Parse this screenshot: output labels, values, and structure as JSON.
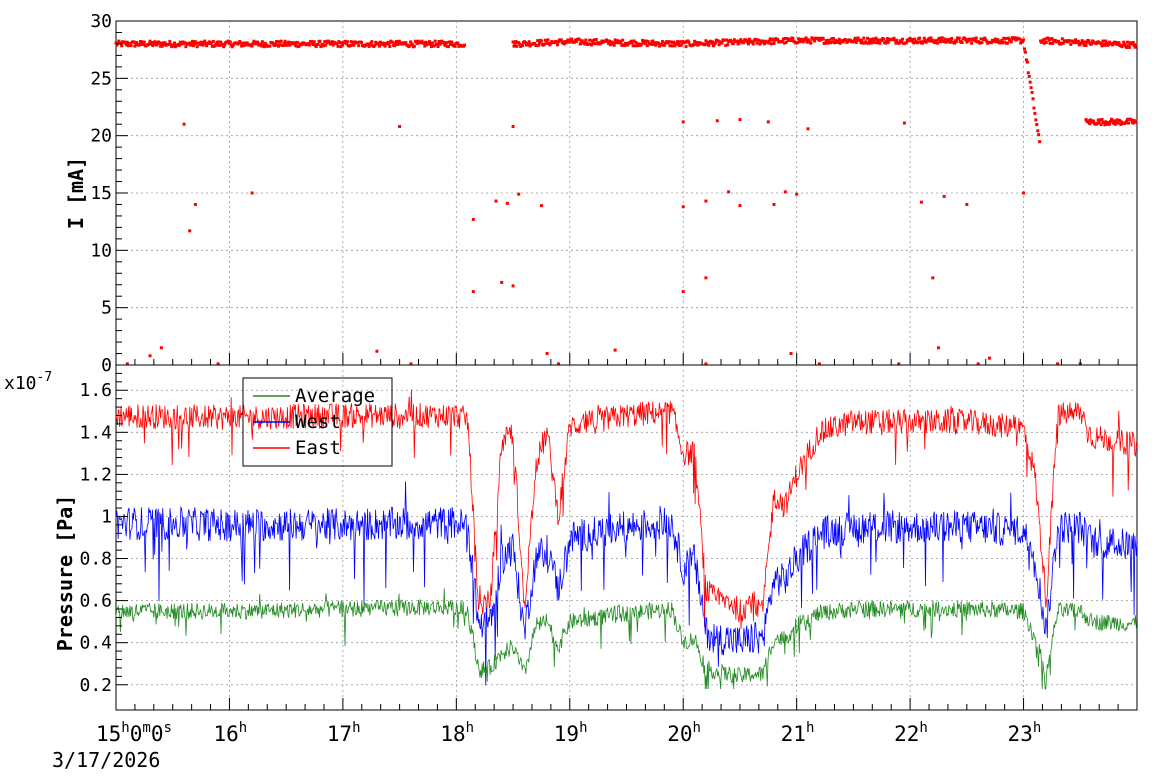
{
  "colors": {
    "current": "#ff0000",
    "average": "#228b22",
    "west": "#0000ff",
    "east": "#ff0000",
    "grid": "#999999",
    "frame": "#000000"
  },
  "chart_data": [
    {
      "type": "scatter",
      "title": "",
      "ylabel": "I [mA]",
      "xlim": [
        15,
        24
      ],
      "ylim": [
        0,
        30
      ],
      "yticks": [
        0,
        5,
        10,
        15,
        20,
        25,
        30
      ],
      "yticklabels": [
        "0",
        "5",
        "10",
        "15",
        "20",
        "25",
        "30"
      ],
      "grid": true,
      "series": [
        {
          "name": "",
          "segments": [
            {
              "x": [
                15.0,
                18.08
              ],
              "y": [
                28.0,
                28.0
              ]
            },
            {
              "x": [
                18.5,
                19.0,
                20.0,
                21.0,
                22.0,
                23.0
              ],
              "y": [
                28.0,
                28.2,
                28.0,
                28.3,
                28.3,
                28.3
              ]
            },
            {
              "x": [
                23.0,
                23.15
              ],
              "y": [
                28.3,
                18.8
              ]
            },
            {
              "x": [
                23.15,
                24.0
              ],
              "y": [
                28.3,
                27.9
              ]
            },
            {
              "x": [
                23.55,
                24.0
              ],
              "y": [
                21.2,
                21.2
              ]
            }
          ],
          "outliers": [
            [
              15.6,
              21.0
            ],
            [
              17.5,
              20.8
            ],
            [
              18.5,
              20.8
            ],
            [
              20.0,
              21.2
            ],
            [
              20.3,
              21.3
            ],
            [
              20.5,
              21.4
            ],
            [
              20.75,
              21.2
            ],
            [
              21.1,
              20.6
            ],
            [
              21.95,
              21.1
            ],
            [
              16.2,
              15.0
            ],
            [
              18.35,
              14.3
            ],
            [
              18.45,
              14.1
            ],
            [
              18.55,
              14.9
            ],
            [
              18.75,
              13.9
            ],
            [
              20.0,
              13.8
            ],
            [
              20.2,
              14.3
            ],
            [
              20.4,
              15.1
            ],
            [
              20.5,
              13.9
            ],
            [
              20.8,
              14.0
            ],
            [
              20.9,
              15.1
            ],
            [
              21.0,
              14.9
            ],
            [
              22.1,
              14.2
            ],
            [
              22.3,
              14.7
            ],
            [
              22.5,
              14.0
            ],
            [
              23.0,
              15.0
            ],
            [
              15.7,
              14.0
            ],
            [
              15.65,
              11.7
            ],
            [
              18.15,
              12.7
            ],
            [
              18.15,
              6.4
            ],
            [
              18.4,
              7.2
            ],
            [
              18.5,
              6.9
            ],
            [
              20.2,
              7.6
            ],
            [
              22.2,
              7.6
            ],
            [
              20.0,
              6.4
            ],
            [
              15.4,
              1.5
            ],
            [
              15.3,
              0.8
            ],
            [
              17.3,
              1.2
            ],
            [
              18.8,
              1.0
            ],
            [
              19.4,
              1.3
            ],
            [
              20.95,
              1.0
            ],
            [
              22.25,
              1.5
            ],
            [
              22.7,
              0.6
            ],
            [
              15.1,
              0.1
            ],
            [
              15.9,
              0.1
            ],
            [
              17.6,
              0.1
            ],
            [
              18.9,
              0.1
            ],
            [
              20.2,
              0.1
            ],
            [
              21.2,
              0.1
            ],
            [
              21.9,
              0.1
            ],
            [
              22.6,
              0.1
            ],
            [
              23.3,
              0.1
            ],
            [
              23.5,
              0.1
            ]
          ]
        }
      ]
    },
    {
      "type": "line",
      "title": "",
      "ylabel": "Pressure [Pa]",
      "yexponent": "x10",
      "yexponent_power": "-7",
      "xlim": [
        15,
        24
      ],
      "ylim": [
        0.08,
        1.72
      ],
      "yticks": [
        0.2,
        0.4,
        0.6,
        0.8,
        1.0,
        1.2,
        1.4,
        1.6
      ],
      "yticklabels": [
        "0.2",
        "0.4",
        "0.6",
        "0.8",
        "1",
        "1.2",
        "1.4",
        "1.6"
      ],
      "xticks": [
        15,
        16,
        17,
        18,
        19,
        20,
        21,
        22,
        23
      ],
      "xticklabels": [
        "15",
        "16",
        "17",
        "18",
        "19",
        "20",
        "21",
        "22",
        "23"
      ],
      "first_tick_suffix": "0m0s",
      "hour_suffix": "h",
      "date_label": "3/17/2026",
      "grid": true,
      "legend": {
        "position": "top-left",
        "entries": [
          "Average",
          "West",
          "East"
        ]
      },
      "series": [
        {
          "name": "East",
          "x": [
            15.0,
            16.0,
            17.0,
            18.0,
            18.1,
            18.2,
            18.3,
            18.4,
            18.5,
            18.6,
            18.7,
            18.8,
            18.9,
            19.0,
            19.5,
            19.9,
            20.0,
            20.1,
            20.2,
            20.3,
            20.4,
            20.5,
            20.6,
            20.7,
            20.8,
            20.9,
            21.0,
            21.2,
            21.5,
            22.0,
            22.5,
            23.0,
            23.1,
            23.2,
            23.3,
            23.5,
            23.6,
            24.0
          ],
          "y": [
            1.48,
            1.47,
            1.48,
            1.48,
            1.46,
            0.55,
            0.6,
            1.35,
            1.4,
            0.55,
            1.25,
            1.4,
            1.0,
            1.43,
            1.48,
            1.5,
            1.3,
            1.3,
            0.65,
            0.6,
            0.6,
            0.55,
            0.6,
            0.55,
            1.1,
            1.05,
            1.2,
            1.4,
            1.45,
            1.45,
            1.45,
            1.42,
            1.2,
            0.6,
            1.48,
            1.5,
            1.38,
            1.34
          ],
          "noise": 0.06
        },
        {
          "name": "West",
          "x": [
            15.0,
            16.0,
            17.0,
            18.0,
            18.1,
            18.2,
            18.3,
            18.4,
            18.5,
            18.6,
            18.7,
            18.8,
            18.9,
            19.0,
            19.5,
            19.9,
            20.0,
            20.1,
            20.2,
            20.3,
            20.4,
            20.5,
            20.6,
            20.7,
            20.8,
            20.9,
            21.0,
            21.2,
            21.5,
            22.0,
            22.5,
            23.0,
            23.1,
            23.2,
            23.3,
            23.5,
            23.6,
            24.0
          ],
          "y": [
            0.97,
            0.96,
            0.96,
            0.97,
            0.95,
            0.48,
            0.5,
            0.8,
            0.85,
            0.45,
            0.8,
            0.85,
            0.65,
            0.9,
            0.95,
            0.97,
            0.75,
            0.8,
            0.45,
            0.42,
            0.42,
            0.4,
            0.42,
            0.42,
            0.7,
            0.7,
            0.8,
            0.92,
            0.95,
            0.95,
            0.95,
            0.93,
            0.8,
            0.45,
            0.95,
            0.95,
            0.88,
            0.86
          ],
          "noise": 0.08
        },
        {
          "name": "Average",
          "x": [
            15.0,
            16.0,
            17.0,
            18.0,
            18.1,
            18.2,
            18.3,
            18.4,
            18.5,
            18.6,
            18.7,
            18.8,
            18.9,
            19.0,
            19.5,
            19.9,
            20.0,
            20.1,
            20.2,
            20.3,
            20.4,
            20.5,
            20.6,
            20.7,
            20.8,
            20.9,
            21.0,
            21.2,
            21.5,
            22.0,
            22.5,
            23.0,
            23.1,
            23.2,
            23.3,
            23.5,
            23.6,
            24.0
          ],
          "y": [
            0.55,
            0.55,
            0.56,
            0.57,
            0.55,
            0.27,
            0.28,
            0.35,
            0.38,
            0.25,
            0.48,
            0.5,
            0.38,
            0.5,
            0.54,
            0.56,
            0.4,
            0.42,
            0.28,
            0.26,
            0.25,
            0.24,
            0.25,
            0.25,
            0.42,
            0.42,
            0.48,
            0.54,
            0.56,
            0.56,
            0.56,
            0.55,
            0.42,
            0.25,
            0.55,
            0.55,
            0.5,
            0.49
          ],
          "noise": 0.04
        }
      ]
    }
  ]
}
